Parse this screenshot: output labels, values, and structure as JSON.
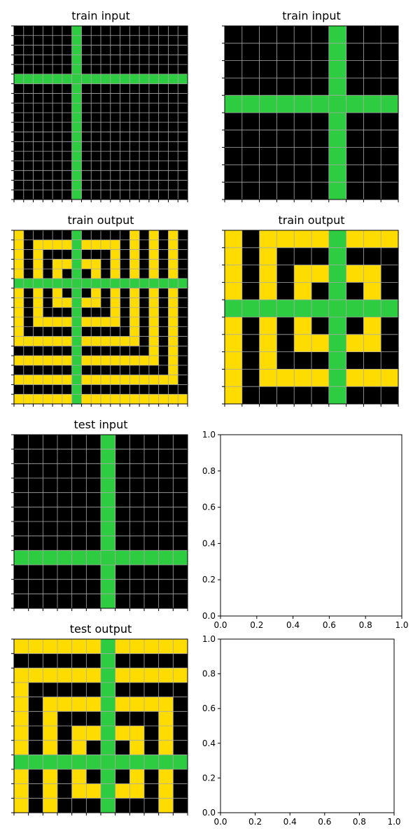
{
  "palette": {
    "0": "#000000",
    "3": "#2ECC40",
    "4": "#FFDC00"
  },
  "grid_line_color": "#aaaaaa",
  "panels": [
    {
      "id": "train-input-1",
      "title": "train input",
      "kind": "grid",
      "cross": {
        "size": 18,
        "row": 5,
        "col": 6
      },
      "transform": false
    },
    {
      "id": "train-input-2",
      "title": "train input",
      "kind": "grid",
      "cross": {
        "size": 10,
        "row": 4,
        "col": 6
      },
      "transform": false
    },
    {
      "id": "train-output-1",
      "title": "train output",
      "kind": "grid",
      "cross": {
        "size": 18,
        "row": 5,
        "col": 6
      },
      "transform": true
    },
    {
      "id": "train-output-2",
      "title": "train output",
      "kind": "grid",
      "cross": {
        "size": 10,
        "row": 4,
        "col": 6
      },
      "transform": true
    },
    {
      "id": "test-input",
      "title": "test input",
      "kind": "grid",
      "cross": {
        "size": 12,
        "row": 8,
        "col": 6
      },
      "transform": false
    },
    {
      "id": "empty-axes-1",
      "title": "",
      "kind": "empty-axes",
      "ticks": [
        "0.0",
        "0.2",
        "0.4",
        "0.6",
        "0.8",
        "1.0"
      ]
    },
    {
      "id": "test-output",
      "title": "test output",
      "kind": "grid",
      "cross": {
        "size": 12,
        "row": 8,
        "col": 6
      },
      "transform": true
    },
    {
      "id": "empty-axes-2",
      "title": "",
      "kind": "empty-axes",
      "ticks": [
        "0.0",
        "0.2",
        "0.4",
        "0.6",
        "0.8",
        "1.0"
      ]
    }
  ]
}
